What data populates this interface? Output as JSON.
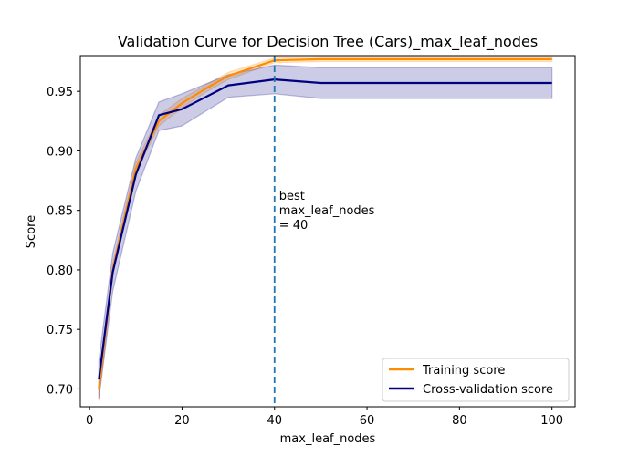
{
  "chart_data": {
    "type": "line",
    "title": "Validation Curve for Decision Tree (Cars)_max_leaf_nodes",
    "xlabel": "max_leaf_nodes",
    "ylabel": "Score",
    "xlim": [
      -2,
      105
    ],
    "ylim": [
      0.685,
      0.98
    ],
    "xticks": [
      0,
      20,
      40,
      60,
      80,
      100
    ],
    "xtick_labels": [
      "0",
      "20",
      "40",
      "60",
      "80",
      "100"
    ],
    "yticks": [
      0.7,
      0.75,
      0.8,
      0.85,
      0.9,
      0.95
    ],
    "ytick_labels": [
      "0.70",
      "0.75",
      "0.80",
      "0.85",
      "0.90",
      "0.95"
    ],
    "grid": false,
    "legend_position": "lower-right",
    "x": [
      2,
      5,
      10,
      15,
      20,
      25,
      30,
      40,
      50,
      60,
      70,
      80,
      90,
      100
    ],
    "series": [
      {
        "name": "Training score",
        "color": "#ff8c00",
        "values": [
          0.7,
          0.8,
          0.885,
          0.925,
          0.94,
          0.952,
          0.963,
          0.976,
          0.977,
          0.977,
          0.977,
          0.977,
          0.977,
          0.977
        ],
        "band_low": [
          0.69,
          0.795,
          0.882,
          0.921,
          0.936,
          0.949,
          0.96,
          0.974,
          0.975,
          0.975,
          0.975,
          0.975,
          0.975,
          0.975
        ],
        "band_high": [
          0.71,
          0.805,
          0.89,
          0.93,
          0.944,
          0.955,
          0.966,
          0.978,
          0.979,
          0.979,
          0.979,
          0.979,
          0.979,
          0.979
        ]
      },
      {
        "name": "Cross-validation score",
        "color": "#000080",
        "values": [
          0.708,
          0.798,
          0.88,
          0.93,
          0.935,
          0.945,
          0.955,
          0.96,
          0.957,
          0.957,
          0.957,
          0.957,
          0.957,
          0.957
        ],
        "band_low": [
          0.692,
          0.782,
          0.866,
          0.917,
          0.921,
          0.933,
          0.945,
          0.948,
          0.944,
          0.944,
          0.944,
          0.944,
          0.944,
          0.944
        ],
        "band_high": [
          0.724,
          0.814,
          0.894,
          0.941,
          0.948,
          0.956,
          0.964,
          0.972,
          0.97,
          0.97,
          0.97,
          0.97,
          0.97,
          0.97
        ]
      }
    ],
    "vline": {
      "x": 40,
      "color": "#1f77b4"
    },
    "annotation_lines": [
      "best",
      "max_leaf_nodes",
      "= 40"
    ]
  }
}
